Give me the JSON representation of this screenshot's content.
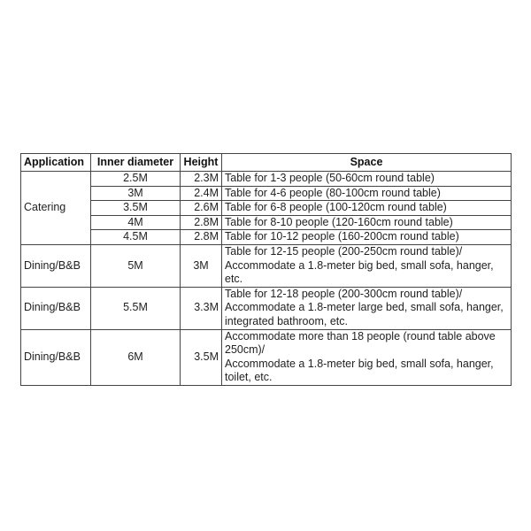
{
  "headers": [
    "Application",
    "Inner diameter",
    "Height",
    "Space"
  ],
  "catering": {
    "application": "Catering",
    "rows": [
      {
        "diameter": "2.5M",
        "height": "2.3M",
        "space": "Table for 1-3 people (50-60cm round table)"
      },
      {
        "diameter": "3M",
        "height": "2.4M",
        "space": "Table for 4-6 people (80-100cm round table)"
      },
      {
        "diameter": "3.5M",
        "height": "2.6M",
        "space": "Table for 6-8 people (100-120cm round table)"
      },
      {
        "diameter": "4M",
        "height": "2.8M",
        "space": "Table for 8-10 people (120-160cm round table)"
      },
      {
        "diameter": "4.5M",
        "height": "2.8M",
        "space": "Table for 10-12 people (160-200cm round table)"
      }
    ]
  },
  "dining": [
    {
      "application": "Dining/B&B",
      "diameter": "5M",
      "height": "3M",
      "space": [
        "Table for 12-15 people (200-250cm round table)/",
        "Accommodate a 1.8-meter big bed, small sofa, hanger,",
        "etc."
      ]
    },
    {
      "application": "Dining/B&B",
      "diameter": "5.5M",
      "height": "3.3M",
      "space": [
        "Table for 12-18 people (200-300cm round table)/",
        "Accommodate a 1.8-meter large bed, small sofa, hanger,",
        "integrated bathroom, etc."
      ]
    },
    {
      "application": "Dining/B&B",
      "diameter": "6M",
      "height": "3.5M",
      "space": [
        "Accommodate more than 18 people (round table above",
        "250cm)/",
        "Accommodate a 1.8-meter big bed, small sofa, hanger,",
        "toilet, etc."
      ]
    }
  ]
}
